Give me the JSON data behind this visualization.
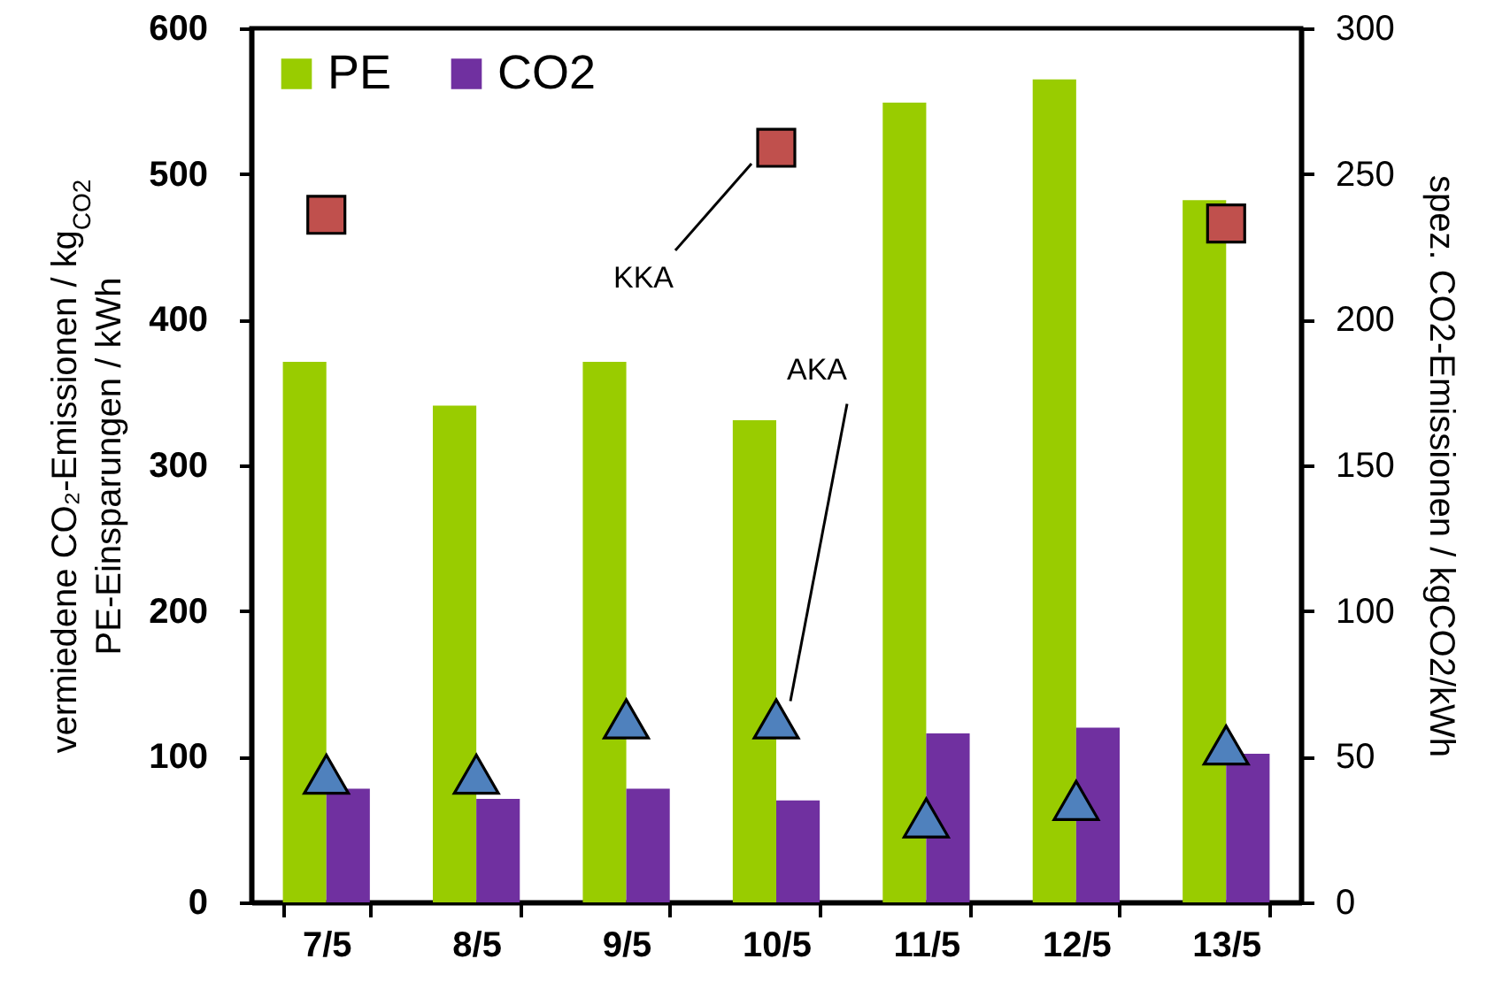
{
  "chart_data": {
    "type": "bar",
    "categories": [
      "7/5",
      "8/5",
      "9/5",
      "10/5",
      "11/5",
      "12/5",
      "13/5"
    ],
    "series": [
      {
        "name": "PE",
        "color": "#99cc00",
        "values": [
          371,
          341,
          371,
          331,
          549,
          565,
          482
        ]
      },
      {
        "name": "CO2",
        "color": "#7030a0",
        "values": [
          78,
          71,
          78,
          70,
          116,
          120,
          102
        ]
      },
      {
        "name": "KKA",
        "type": "scatter",
        "axis": "y2",
        "marker": "square",
        "color": "#c0504d",
        "values": [
          236,
          null,
          null,
          259,
          null,
          null,
          233
        ]
      },
      {
        "name": "AKA",
        "type": "scatter",
        "axis": "y2",
        "marker": "triangle",
        "color": "#4f81bd",
        "values": [
          44,
          44,
          63,
          63,
          29,
          35,
          54
        ]
      }
    ],
    "ylabel": "vermiedene CO₂-Emissionen / kg$_{CO2}$\nPE-Einsparungen / kWh",
    "y2label": "spez. CO2-Emissionen / kgCO2/kWh",
    "ylim": [
      0,
      600
    ],
    "yticks": [
      0,
      100,
      200,
      300,
      400,
      500,
      600
    ],
    "y2lim": [
      0,
      300
    ],
    "y2ticks": [
      0,
      50,
      100,
      150,
      200,
      250,
      300
    ],
    "legend": "top left",
    "grid": false
  }
}
